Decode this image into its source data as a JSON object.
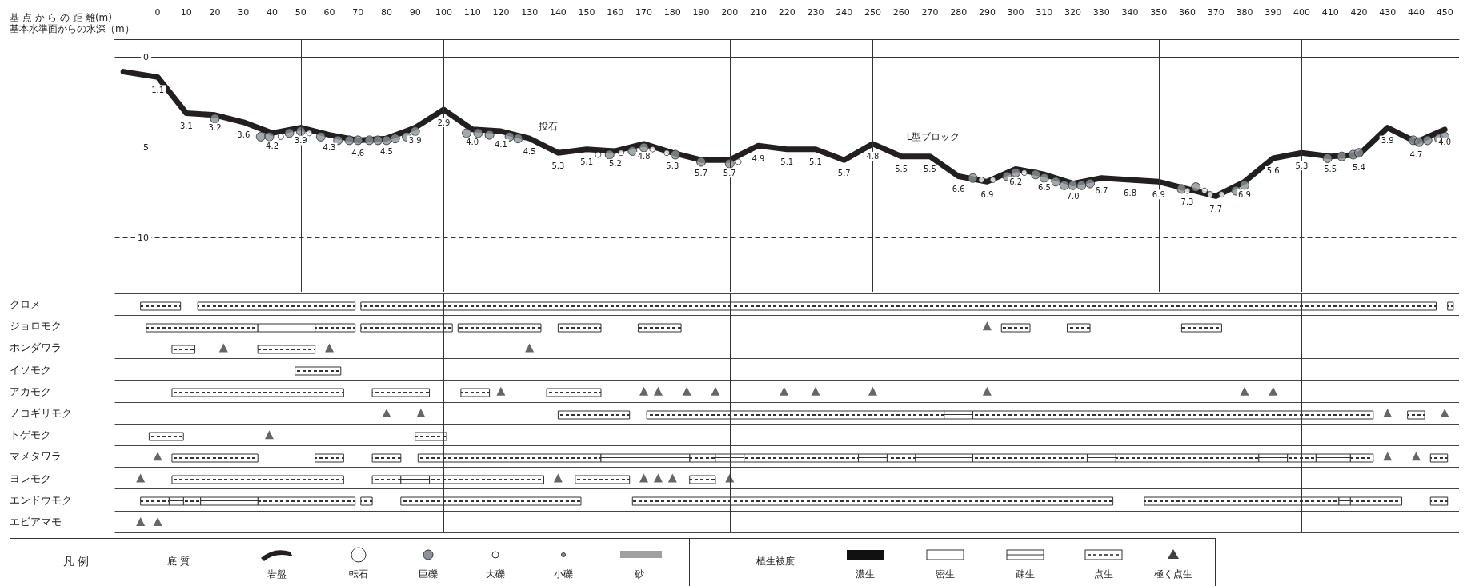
{
  "chart_data": [
    {
      "type": "line",
      "xlabel": "基 点 か ら の 距 離(m)",
      "xlim": [
        -15,
        455
      ],
      "xticks": [
        0,
        10,
        20,
        30,
        40,
        50,
        60,
        70,
        80,
        90,
        100,
        110,
        120,
        130,
        140,
        150,
        160,
        170,
        180,
        190,
        200,
        210,
        220,
        230,
        240,
        250,
        260,
        270,
        280,
        290,
        300,
        310,
        320,
        330,
        340,
        350,
        360,
        370,
        380,
        390,
        400,
        410,
        420,
        430,
        440,
        450
      ],
      "ylim": [
        13,
        -1
      ],
      "yticks": [
        0,
        5,
        10
      ],
      "annotations": [
        "基本水準面からの水深（m）",
        "投石",
        "L型ブロック"
      ],
      "ref_lines": [
        {
          "axis": "x",
          "value": 0
        },
        {
          "axis": "x",
          "value": 50
        },
        {
          "axis": "x",
          "value": 100
        },
        {
          "axis": "x",
          "value": 150
        },
        {
          "axis": "x",
          "value": 200
        },
        {
          "axis": "x",
          "value": 250
        },
        {
          "axis": "x",
          "value": 300
        },
        {
          "axis": "x",
          "value": 350
        },
        {
          "axis": "x",
          "value": 400
        },
        {
          "axis": "x",
          "value": 450
        },
        {
          "axis": "y",
          "value": 0
        },
        {
          "axis": "y",
          "value": 10,
          "line_style": "dashed"
        }
      ],
      "series": [
        {
          "type": "line",
          "color": "#231f20",
          "x": [
            -12,
            0,
            10,
            20,
            30,
            40,
            50,
            60,
            70,
            80,
            90,
            100,
            110,
            120,
            130,
            140,
            150,
            160,
            170,
            180,
            190,
            200,
            210,
            220,
            230,
            240,
            250,
            260,
            270,
            280,
            290,
            300,
            310,
            320,
            330,
            340,
            350,
            360,
            370,
            380,
            390,
            400,
            410,
            420,
            430,
            440,
            450
          ],
          "values": [
            0.8,
            1.1,
            3.1,
            3.2,
            3.6,
            4.2,
            3.9,
            4.3,
            4.6,
            4.5,
            3.9,
            2.9,
            4.0,
            4.1,
            4.5,
            5.3,
            5.1,
            5.2,
            4.8,
            5.3,
            5.7,
            5.7,
            4.9,
            5.1,
            5.1,
            5.7,
            4.8,
            5.5,
            5.5,
            6.6,
            6.9,
            6.2,
            6.5,
            7.0,
            6.7,
            6.8,
            6.9,
            7.3,
            7.7,
            6.9,
            5.6,
            5.3,
            5.5,
            5.4,
            3.9,
            4.7,
            4.0
          ],
          "value_labels": [
            null,
            "1.1",
            "3.1",
            "3.2",
            "3.6",
            "4.2",
            "3.9",
            "4.3",
            "4.6",
            "4.5",
            "3.9",
            "2.9",
            "4.0",
            "4.1",
            "4.5",
            "5.3",
            "5.1",
            "5.2",
            "4.8",
            "5.3",
            "5.7",
            "5.7",
            "4.9",
            "5.1",
            "5.1",
            "5.7",
            "4.8",
            "5.5",
            "5.5",
            "6.6",
            "6.9",
            "6.2",
            "6.5",
            "7.0",
            "6.7",
            "6.8",
            "6.9",
            "7.3",
            "7.7",
            "6.9",
            "5.6",
            "5.3",
            "5.5",
            "5.4",
            "3.9",
            "4.7",
            "4.0"
          ]
        },
        {
          "type": "scatter",
          "marker": "circle",
          "color": "#8a9399",
          "x": [
            20,
            36,
            39,
            46,
            50,
            57,
            63,
            67,
            70,
            74,
            77,
            80,
            83,
            87,
            90,
            108,
            112,
            116,
            123,
            126,
            158,
            166,
            170,
            181,
            190,
            200,
            285,
            297,
            300,
            307,
            310,
            314,
            317,
            320,
            323,
            326,
            358,
            363,
            377,
            380,
            409,
            414,
            418,
            420,
            439,
            441,
            444,
            448,
            450
          ],
          "values": [
            3.4,
            4.4,
            4.4,
            4.2,
            4.1,
            4.4,
            4.6,
            4.6,
            4.6,
            4.6,
            4.6,
            4.6,
            4.5,
            4.4,
            4.1,
            4.2,
            4.2,
            4.3,
            4.4,
            4.5,
            5.4,
            5.2,
            5.0,
            5.4,
            5.8,
            5.9,
            6.7,
            6.6,
            6.4,
            6.5,
            6.7,
            6.9,
            7.1,
            7.1,
            7.1,
            7.0,
            7.3,
            7.2,
            7.4,
            7.1,
            5.6,
            5.5,
            5.4,
            5.3,
            4.6,
            4.7,
            4.6,
            4.5,
            4.4
          ]
        },
        {
          "type": "scatter",
          "marker": "circle",
          "color": "#ffffff",
          "x": [
            43,
            53,
            154,
            162,
            173,
            178,
            203,
            288,
            292,
            303,
            360,
            366,
            368,
            372
          ],
          "values": [
            4.4,
            4.2,
            5.4,
            5.3,
            5.1,
            5.3,
            5.8,
            6.8,
            6.8,
            6.4,
            7.4,
            7.4,
            7.6,
            7.6
          ]
        }
      ]
    },
    {
      "type": "bar",
      "orientation": "horizontal",
      "categories": [
        "クロメ",
        "ジョロモク",
        "ホンダワラ",
        "イソモク",
        "アカモク",
        "ノコギリモク",
        "トゲモク",
        "マメタワラ",
        "ヨレモク",
        "エンドウモク",
        "エビアマモ"
      ],
      "xlim": [
        -15,
        455
      ],
      "tick_labels": "y",
      "grid": "y",
      "ref_lines": [
        {
          "axis": "x",
          "value": 0
        },
        {
          "axis": "x",
          "value": 100
        },
        {
          "axis": "x",
          "value": 200
        },
        {
          "axis": "x",
          "value": 300
        },
        {
          "axis": "x",
          "value": 400
        },
        {
          "axis": "x",
          "value": 450
        }
      ],
      "series": [
        {
          "color": "#333333",
          "line_style": "dashed",
          "values": [
            14,
            39,
            8,
            16,
            60,
            25,
            12,
            30,
            60,
            10,
            null
          ],
          "base": [
            -6,
            -4,
            5,
            48,
            5,
            140,
            -3,
            5,
            5,
            -6,
            null
          ]
        },
        {
          "color": "#333333",
          "line_style": "dashed",
          "values": [
            55,
            14,
            20,
            null,
            20,
            104,
            11,
            10,
            10,
            6,
            null
          ],
          "base": [
            14,
            55,
            35,
            null,
            75,
            171,
            90,
            55,
            75,
            9,
            null
          ]
        },
        {
          "color": "#333333",
          "line_style": "dashed",
          "values": [
            376,
            32,
            null,
            null,
            10,
            140,
            null,
            10,
            40,
            34,
            null
          ],
          "base": [
            71,
            71,
            null,
            null,
            106,
            285,
            null,
            75,
            95,
            35,
            null
          ]
        },
        {
          "color": "#333333",
          "line_style": "dashed",
          "values": [
            2,
            29,
            null,
            null,
            19,
            6,
            null,
            64,
            19,
            4,
            null
          ],
          "base": [
            451,
            105,
            null,
            null,
            136,
            437,
            null,
            91,
            146,
            71,
            null
          ]
        },
        {
          "color": "#333333",
          "line_style": "dashed",
          "values": [
            null,
            15,
            null,
            null,
            null,
            null,
            null,
            9,
            9,
            63,
            null
          ],
          "base": [
            null,
            140,
            null,
            null,
            null,
            null,
            null,
            186,
            186,
            85,
            null
          ]
        },
        {
          "color": "#333333",
          "line_style": "dashed",
          "values": [
            null,
            15,
            null,
            null,
            null,
            null,
            null,
            40,
            null,
            168,
            null
          ],
          "base": [
            null,
            168,
            null,
            null,
            null,
            null,
            null,
            205,
            null,
            166,
            null
          ]
        },
        {
          "color": "#333333",
          "line_style": "dashed",
          "values": [
            null,
            10,
            null,
            null,
            null,
            null,
            null,
            10,
            null,
            68,
            null
          ],
          "base": [
            null,
            295,
            null,
            null,
            null,
            null,
            null,
            255,
            null,
            345,
            null
          ]
        },
        {
          "color": "#333333",
          "line_style": "dashed",
          "values": [
            null,
            8,
            null,
            null,
            null,
            null,
            null,
            40,
            null,
            18,
            null
          ],
          "base": [
            null,
            318,
            null,
            null,
            null,
            null,
            null,
            285,
            null,
            417,
            null
          ]
        },
        {
          "color": "#333333",
          "line_style": "dashed",
          "values": [
            null,
            14,
            null,
            null,
            null,
            null,
            null,
            50,
            null,
            6,
            null
          ],
          "base": [
            null,
            358,
            null,
            null,
            null,
            null,
            null,
            335,
            null,
            445,
            null
          ]
        },
        {
          "color": "#333333",
          "line_style": "dashed",
          "values": [
            null,
            null,
            null,
            null,
            null,
            null,
            null,
            10,
            null,
            null,
            null
          ],
          "base": [
            null,
            null,
            null,
            null,
            null,
            null,
            null,
            395,
            null,
            null,
            null
          ]
        },
        {
          "color": "#333333",
          "line_style": "dashed",
          "values": [
            null,
            null,
            null,
            null,
            null,
            null,
            null,
            8,
            null,
            null,
            null
          ],
          "base": [
            null,
            null,
            null,
            null,
            null,
            null,
            null,
            417,
            null,
            null,
            null
          ]
        },
        {
          "color": "#333333",
          "line_style": "dashed",
          "values": [
            null,
            null,
            null,
            null,
            null,
            null,
            null,
            6,
            null,
            null,
            null
          ],
          "base": [
            null,
            null,
            null,
            null,
            null,
            null,
            null,
            445,
            null,
            null,
            null
          ]
        },
        {
          "color": "#333333",
          "line_style": "solid",
          "values": [
            null,
            null,
            null,
            null,
            null,
            10,
            null,
            31,
            10,
            5,
            null
          ],
          "base": [
            null,
            null,
            null,
            null,
            null,
            275,
            null,
            155,
            85,
            4,
            null
          ]
        },
        {
          "color": "#333333",
          "line_style": "solid",
          "values": [
            null,
            null,
            null,
            null,
            null,
            null,
            null,
            10,
            null,
            20,
            null
          ],
          "base": [
            null,
            null,
            null,
            null,
            null,
            null,
            null,
            195,
            null,
            15,
            null
          ]
        },
        {
          "color": "#333333",
          "line_style": "solid",
          "values": [
            null,
            null,
            null,
            null,
            null,
            null,
            null,
            10,
            null,
            4,
            null
          ],
          "base": [
            null,
            null,
            null,
            null,
            null,
            null,
            null,
            245,
            null,
            413,
            null
          ]
        },
        {
          "color": "#333333",
          "line_style": "solid",
          "values": [
            null,
            null,
            null,
            null,
            null,
            null,
            null,
            20,
            null,
            null,
            null
          ],
          "base": [
            null,
            null,
            null,
            null,
            null,
            null,
            null,
            265,
            null,
            null,
            null
          ]
        },
        {
          "color": "#333333",
          "line_style": "solid",
          "values": [
            null,
            null,
            null,
            null,
            null,
            null,
            null,
            10,
            null,
            null,
            null
          ],
          "base": [
            null,
            null,
            null,
            null,
            null,
            null,
            null,
            325,
            null,
            null,
            null
          ]
        },
        {
          "color": "#333333",
          "line_style": "solid",
          "values": [
            null,
            null,
            null,
            null,
            null,
            null,
            null,
            10,
            null,
            null,
            null
          ],
          "base": [
            null,
            null,
            null,
            null,
            null,
            null,
            null,
            385,
            null,
            null,
            null
          ]
        },
        {
          "color": "#333333",
          "line_style": "solid",
          "values": [
            null,
            null,
            null,
            null,
            null,
            null,
            null,
            12,
            null,
            null,
            null
          ],
          "base": [
            null,
            null,
            null,
            null,
            null,
            null,
            null,
            405,
            null,
            null,
            null
          ]
        },
        {
          "color": "#ffffff",
          "values": [
            null,
            20,
            null,
            null,
            null,
            null,
            null,
            null,
            null,
            null,
            null
          ],
          "base": [
            null,
            35,
            null,
            null,
            null,
            null,
            null,
            null,
            null,
            null,
            null
          ]
        },
        {
          "type": "scatter",
          "marker": "triangle",
          "color": "#404040",
          "x": [
            "ジョロモク",
            "ホンダワラ",
            "ホンダワラ",
            "ホンダワラ",
            "アカモク",
            "アカモク",
            "アカモク",
            "アカモク",
            "アカモク",
            "アカモク",
            "アカモク",
            "アカモク",
            "アカモク",
            "アカモク",
            "アカモク",
            "ノコギリモク",
            "ノコギリモク",
            "ノコギリモク",
            "ノコギリモク",
            "トゲモク",
            "マメタワラ",
            "マメタワラ",
            "マメタワラ",
            "ヨレモク",
            "ヨレモク",
            "ヨレモク",
            "ヨレモク",
            "ヨレモク",
            "ヨレモク",
            "エビアマモ",
            "エビアマモ"
          ],
          "values": [
            290,
            23,
            60,
            130,
            120,
            170,
            175,
            185,
            195,
            219,
            230,
            250,
            290,
            380,
            390,
            80,
            92,
            430,
            450,
            39,
            0,
            430,
            440,
            -6,
            140,
            170,
            175,
            180,
            200,
            -6,
            0
          ]
        }
      ]
    },
    {
      "type": "other",
      "title": "凡 例",
      "annotations": [
        "底 質",
        "岩盤",
        "転石",
        "巨礫",
        "大礫",
        "小礫",
        "砂",
        "植生被度",
        "濃生",
        "密生",
        "疎生",
        "点生",
        "極く点生"
      ]
    }
  ]
}
